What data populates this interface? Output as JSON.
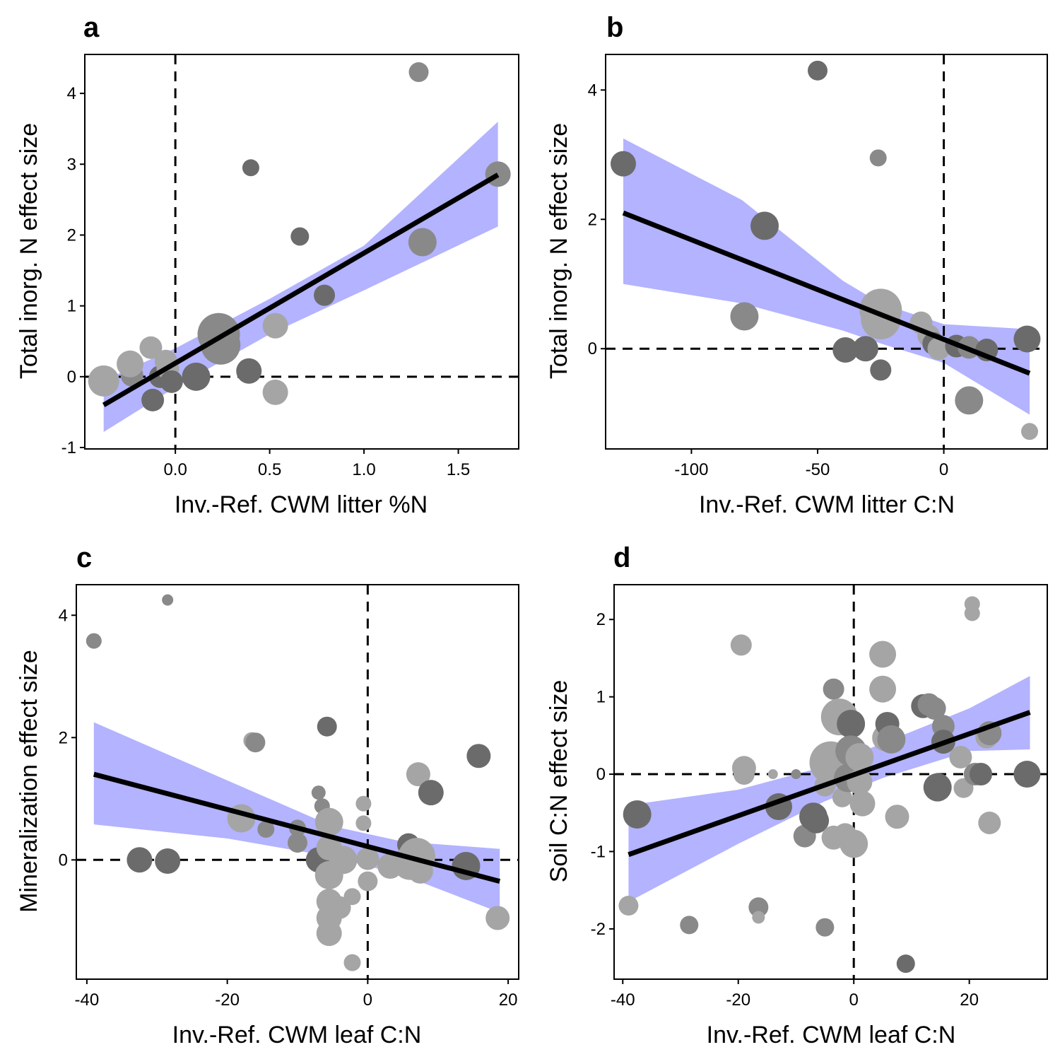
{
  "figure": {
    "panels": [
      "a",
      "b",
      "c",
      "d"
    ]
  },
  "colors": {
    "ci_band": "#b3b3ff",
    "fit_line": "#000000",
    "point_dark": "#6b6b6b",
    "point_mid": "#898989",
    "point_light": "#a5a5a5"
  },
  "chart_data": [
    {
      "panel": "a",
      "type": "scatter",
      "xlabel": "Inv.-Ref. CWM litter %N",
      "ylabel": "Total inorg. N effect size",
      "xlim": [
        -0.48,
        1.82
      ],
      "ylim": [
        -1.02,
        4.55
      ],
      "xticks": [
        0.0,
        0.5,
        1.0,
        1.5
      ],
      "xtick_labels": [
        "0.0",
        "0.5",
        "1.0",
        "1.5"
      ],
      "yticks": [
        -1,
        0,
        1,
        2,
        3,
        4
      ],
      "ytick_labels": [
        "-1",
        "0",
        "1",
        "2",
        "3",
        "4"
      ],
      "reference_lines": {
        "x": 0,
        "y": 0
      },
      "fit": {
        "x": [
          -0.38,
          1.71
        ],
        "y": [
          -0.4,
          2.85
        ]
      },
      "ci_band": {
        "x": [
          -0.38,
          0.0,
          0.5,
          1.0,
          1.71
        ],
        "lower": [
          -0.78,
          -0.15,
          0.6,
          1.22,
          2.12
        ],
        "upper": [
          -0.05,
          0.4,
          1.1,
          1.85,
          3.6
        ]
      },
      "points": [
        {
          "x": -0.38,
          "y": -0.06,
          "size": 22,
          "shade": "light"
        },
        {
          "x": -0.23,
          "y": 0.02,
          "size": 16,
          "shade": "mid"
        },
        {
          "x": -0.24,
          "y": 0.18,
          "size": 19,
          "shade": "light"
        },
        {
          "x": -0.13,
          "y": 0.41,
          "size": 16,
          "shade": "light"
        },
        {
          "x": -0.12,
          "y": -0.33,
          "size": 16,
          "shade": "dark"
        },
        {
          "x": -0.08,
          "y": 0.0,
          "size": 16,
          "shade": "dark"
        },
        {
          "x": -0.05,
          "y": 0.22,
          "size": 16,
          "shade": "light"
        },
        {
          "x": -0.04,
          "y": 0.12,
          "size": 16,
          "shade": "light"
        },
        {
          "x": -0.02,
          "y": -0.07,
          "size": 16,
          "shade": "dark"
        },
        {
          "x": 0.11,
          "y": 0.0,
          "size": 20,
          "shade": "dark"
        },
        {
          "x": 0.23,
          "y": 0.6,
          "size": 30,
          "shade": "mid"
        },
        {
          "x": 0.24,
          "y": 0.45,
          "size": 28,
          "shade": "mid"
        },
        {
          "x": 0.39,
          "y": 0.08,
          "size": 18,
          "shade": "dark"
        },
        {
          "x": 0.4,
          "y": 2.95,
          "size": 12,
          "shade": "dark"
        },
        {
          "x": 0.53,
          "y": 0.72,
          "size": 18,
          "shade": "light"
        },
        {
          "x": 0.53,
          "y": -0.22,
          "size": 18,
          "shade": "light"
        },
        {
          "x": 0.66,
          "y": 1.98,
          "size": 13,
          "shade": "dark"
        },
        {
          "x": 0.79,
          "y": 1.15,
          "size": 15,
          "shade": "dark"
        },
        {
          "x": 1.29,
          "y": 4.3,
          "size": 14,
          "shade": "mid"
        },
        {
          "x": 1.31,
          "y": 1.9,
          "size": 20,
          "shade": "mid"
        },
        {
          "x": 1.71,
          "y": 2.86,
          "size": 18,
          "shade": "mid"
        }
      ]
    },
    {
      "panel": "b",
      "type": "scatter",
      "xlabel": "Inv.-Ref. CWM litter C:N",
      "ylabel": "Total inorg. N effect size",
      "xlim": [
        -134,
        41
      ],
      "ylim": [
        -1.55,
        4.55
      ],
      "xticks": [
        -100,
        -50,
        0
      ],
      "xtick_labels": [
        "-100",
        "-50",
        "0"
      ],
      "yticks": [
        0,
        2,
        4
      ],
      "ytick_labels": [
        "0",
        "2",
        "4"
      ],
      "reference_lines": {
        "x": 0,
        "y": 0
      },
      "fit": {
        "x": [
          -127,
          34
        ],
        "y": [
          2.1,
          -0.38
        ]
      },
      "ci_band": {
        "x": [
          -127,
          -80,
          -40,
          -25,
          0,
          34
        ],
        "lower": [
          1.0,
          0.7,
          0.28,
          0.08,
          -0.22,
          -1.02
        ],
        "upper": [
          3.25,
          2.3,
          1.05,
          0.7,
          0.38,
          0.3
        ]
      },
      "points": [
        {
          "x": -127,
          "y": 2.86,
          "size": 18,
          "shade": "dark"
        },
        {
          "x": -71,
          "y": 1.9,
          "size": 20,
          "shade": "dark"
        },
        {
          "x": -50,
          "y": 4.3,
          "size": 14,
          "shade": "dark"
        },
        {
          "x": -79,
          "y": 0.5,
          "size": 20,
          "shade": "mid"
        },
        {
          "x": -39,
          "y": -0.02,
          "size": 18,
          "shade": "dark"
        },
        {
          "x": -31,
          "y": 0.0,
          "size": 18,
          "shade": "dark"
        },
        {
          "x": -26,
          "y": 2.95,
          "size": 12,
          "shade": "mid"
        },
        {
          "x": -25,
          "y": 0.6,
          "size": 30,
          "shade": "light"
        },
        {
          "x": -25,
          "y": 0.45,
          "size": 28,
          "shade": "light"
        },
        {
          "x": -25,
          "y": -0.33,
          "size": 15,
          "shade": "dark"
        },
        {
          "x": -9,
          "y": 0.4,
          "size": 16,
          "shade": "light"
        },
        {
          "x": -6,
          "y": 0.2,
          "size": 16,
          "shade": "light"
        },
        {
          "x": -4,
          "y": 0.08,
          "size": 16,
          "shade": "dark"
        },
        {
          "x": -2,
          "y": 0.0,
          "size": 16,
          "shade": "light"
        },
        {
          "x": 5,
          "y": 0.04,
          "size": 16,
          "shade": "dark"
        },
        {
          "x": 10,
          "y": 0.02,
          "size": 16,
          "shade": "mid"
        },
        {
          "x": 10,
          "y": -0.8,
          "size": 20,
          "shade": "mid"
        },
        {
          "x": 17,
          "y": -0.02,
          "size": 16,
          "shade": "dark"
        },
        {
          "x": 33,
          "y": 0.15,
          "size": 19,
          "shade": "dark"
        },
        {
          "x": 34,
          "y": -1.28,
          "size": 12,
          "shade": "light"
        }
      ]
    },
    {
      "panel": "c",
      "type": "scatter",
      "xlabel": "Inv.-Ref. CWM leaf C:N",
      "ylabel": "Mineralization effect size",
      "xlim": [
        -41.5,
        21.5
      ],
      "ylim": [
        -1.95,
        4.5
      ],
      "xticks": [
        -40,
        -20,
        0,
        20
      ],
      "xtick_labels": [
        "-40",
        "-20",
        "0",
        "20"
      ],
      "yticks": [
        0,
        2,
        4
      ],
      "ytick_labels": [
        "0",
        "2",
        "4"
      ],
      "reference_lines": {
        "x": 0,
        "y": 0
      },
      "fit": {
        "x": [
          -39,
          18.8
        ],
        "y": [
          1.4,
          -0.35
        ]
      },
      "ci_band": {
        "x": [
          -39,
          -20,
          -5,
          5,
          18.8
        ],
        "lower": [
          0.58,
          0.35,
          0.05,
          -0.25,
          -0.86
        ],
        "upper": [
          2.25,
          1.3,
          0.55,
          0.3,
          0.18
        ]
      },
      "points": [
        {
          "x": -39,
          "y": 3.58,
          "size": 11,
          "shade": "mid"
        },
        {
          "x": -28.5,
          "y": 4.25,
          "size": 8,
          "shade": "mid"
        },
        {
          "x": -32.5,
          "y": 0.0,
          "size": 18,
          "shade": "dark"
        },
        {
          "x": -28.5,
          "y": -0.02,
          "size": 18,
          "shade": "dark"
        },
        {
          "x": -18,
          "y": 0.68,
          "size": 20,
          "shade": "light"
        },
        {
          "x": -16.5,
          "y": 1.95,
          "size": 12,
          "shade": "light"
        },
        {
          "x": -16,
          "y": 1.92,
          "size": 14,
          "shade": "mid"
        },
        {
          "x": -14.5,
          "y": 0.5,
          "size": 12,
          "shade": "mid"
        },
        {
          "x": -10,
          "y": 0.52,
          "size": 12,
          "shade": "mid"
        },
        {
          "x": -10,
          "y": 0.28,
          "size": 14,
          "shade": "mid"
        },
        {
          "x": -7,
          "y": 1.1,
          "size": 10,
          "shade": "mid"
        },
        {
          "x": -6.5,
          "y": 0.88,
          "size": 11,
          "shade": "mid"
        },
        {
          "x": -7,
          "y": 0.0,
          "size": 18,
          "shade": "dark"
        },
        {
          "x": -5.8,
          "y": 2.18,
          "size": 14,
          "shade": "dark"
        },
        {
          "x": -5.5,
          "y": 0.62,
          "size": 20,
          "shade": "light"
        },
        {
          "x": -5.5,
          "y": 0.2,
          "size": 18,
          "shade": "light"
        },
        {
          "x": -5.5,
          "y": -0.25,
          "size": 20,
          "shade": "light"
        },
        {
          "x": -5.5,
          "y": -0.68,
          "size": 18,
          "shade": "light"
        },
        {
          "x": -5.5,
          "y": -0.95,
          "size": 18,
          "shade": "light"
        },
        {
          "x": -5.5,
          "y": -1.2,
          "size": 18,
          "shade": "light"
        },
        {
          "x": -4,
          "y": -0.78,
          "size": 16,
          "shade": "light"
        },
        {
          "x": -3.5,
          "y": 0.0,
          "size": 20,
          "shade": "light"
        },
        {
          "x": -2.2,
          "y": -0.6,
          "size": 12,
          "shade": "light"
        },
        {
          "x": -2.2,
          "y": -1.68,
          "size": 12,
          "shade": "light"
        },
        {
          "x": -0.6,
          "y": 0.92,
          "size": 11,
          "shade": "light"
        },
        {
          "x": -0.6,
          "y": 0.6,
          "size": 11,
          "shade": "light"
        },
        {
          "x": 0,
          "y": 0.02,
          "size": 16,
          "shade": "light"
        },
        {
          "x": 0,
          "y": -0.35,
          "size": 14,
          "shade": "light"
        },
        {
          "x": 3.2,
          "y": -0.1,
          "size": 18,
          "shade": "light"
        },
        {
          "x": 5.8,
          "y": 0.25,
          "size": 16,
          "shade": "dark"
        },
        {
          "x": 6,
          "y": -0.05,
          "size": 24,
          "shade": "light"
        },
        {
          "x": 7,
          "y": 0.06,
          "size": 26,
          "shade": "light"
        },
        {
          "x": 7.5,
          "y": -0.18,
          "size": 18,
          "shade": "light"
        },
        {
          "x": 7.2,
          "y": 1.4,
          "size": 17,
          "shade": "light"
        },
        {
          "x": 9,
          "y": 1.1,
          "size": 18,
          "shade": "dark"
        },
        {
          "x": 14,
          "y": -0.1,
          "size": 20,
          "shade": "dark"
        },
        {
          "x": 15.8,
          "y": 1.7,
          "size": 17,
          "shade": "dark"
        },
        {
          "x": 18.5,
          "y": -0.95,
          "size": 17,
          "shade": "light"
        }
      ]
    },
    {
      "panel": "d",
      "type": "scatter",
      "xlabel": "Inv.-Ref. CWM leaf C:N",
      "ylabel": "Soil C:N effect size",
      "xlim": [
        -41.5,
        33.5
      ],
      "ylim": [
        -2.65,
        2.45
      ],
      "xticks": [
        -40,
        -20,
        0,
        20
      ],
      "xtick_labels": [
        "-40",
        "-20",
        "0",
        "20"
      ],
      "yticks": [
        -2,
        -1,
        0,
        1,
        2
      ],
      "ytick_labels": [
        "-2",
        "-1",
        "0",
        "1",
        "2"
      ],
      "reference_lines": {
        "x": 0,
        "y": 0
      },
      "fit": {
        "x": [
          -39,
          30.5
        ],
        "y": [
          -1.04,
          0.8
        ]
      },
      "ci_band": {
        "x": [
          -39,
          -20,
          -5,
          5,
          20,
          30.5
        ],
        "lower": [
          -1.65,
          -0.9,
          -0.35,
          -0.05,
          0.3,
          0.32
        ],
        "upper": [
          -0.4,
          -0.2,
          0.1,
          0.4,
          0.85,
          1.27
        ]
      },
      "points": [
        {
          "x": -39,
          "y": -1.7,
          "size": 14,
          "shade": "light"
        },
        {
          "x": -37.5,
          "y": -0.52,
          "size": 20,
          "shade": "dark"
        },
        {
          "x": -28.5,
          "y": -1.95,
          "size": 13,
          "shade": "mid"
        },
        {
          "x": -19.5,
          "y": 1.67,
          "size": 15,
          "shade": "light"
        },
        {
          "x": -19,
          "y": 0.08,
          "size": 17,
          "shade": "light"
        },
        {
          "x": -19,
          "y": 0.0,
          "size": 15,
          "shade": "light"
        },
        {
          "x": -16.5,
          "y": -1.72,
          "size": 14,
          "shade": "mid"
        },
        {
          "x": -16.5,
          "y": -1.85,
          "size": 9,
          "shade": "light"
        },
        {
          "x": -14,
          "y": 0.0,
          "size": 7,
          "shade": "light"
        },
        {
          "x": -13,
          "y": -0.42,
          "size": 19,
          "shade": "dark"
        },
        {
          "x": -10,
          "y": 0.0,
          "size": 7,
          "shade": "mid"
        },
        {
          "x": -8.5,
          "y": -0.8,
          "size": 16,
          "shade": "mid"
        },
        {
          "x": -7,
          "y": -0.55,
          "size": 20,
          "shade": "dark"
        },
        {
          "x": -6.5,
          "y": -0.6,
          "size": 18,
          "shade": "dark"
        },
        {
          "x": -5.5,
          "y": 0.0,
          "size": 8,
          "shade": "light"
        },
        {
          "x": -5,
          "y": -1.98,
          "size": 13,
          "shade": "mid"
        },
        {
          "x": -5,
          "y": -0.15,
          "size": 15,
          "shade": "light"
        },
        {
          "x": -4,
          "y": 0.15,
          "size": 30,
          "shade": "light"
        },
        {
          "x": -3.5,
          "y": 1.1,
          "size": 15,
          "shade": "mid"
        },
        {
          "x": -3.5,
          "y": -0.82,
          "size": 17,
          "shade": "light"
        },
        {
          "x": -2.5,
          "y": 0.74,
          "size": 26,
          "shade": "light"
        },
        {
          "x": -2,
          "y": -0.3,
          "size": 14,
          "shade": "light"
        },
        {
          "x": -1.5,
          "y": -0.78,
          "size": 16,
          "shade": "light"
        },
        {
          "x": -1,
          "y": -0.05,
          "size": 20,
          "shade": "mid"
        },
        {
          "x": -0.5,
          "y": 0.65,
          "size": 20,
          "shade": "dark"
        },
        {
          "x": -0.5,
          "y": 0.3,
          "size": 22,
          "shade": "mid"
        },
        {
          "x": 0,
          "y": 0.0,
          "size": 10,
          "shade": "mid"
        },
        {
          "x": 0,
          "y": -0.9,
          "size": 20,
          "shade": "light"
        },
        {
          "x": 1,
          "y": 0.22,
          "size": 20,
          "shade": "light"
        },
        {
          "x": 1,
          "y": -0.1,
          "size": 18,
          "shade": "light"
        },
        {
          "x": 1.5,
          "y": -0.38,
          "size": 18,
          "shade": "light"
        },
        {
          "x": 5,
          "y": 1.55,
          "size": 19,
          "shade": "light"
        },
        {
          "x": 5,
          "y": 1.1,
          "size": 19,
          "shade": "light"
        },
        {
          "x": 5.5,
          "y": 0.47,
          "size": 19,
          "shade": "light"
        },
        {
          "x": 5.8,
          "y": 0.65,
          "size": 17,
          "shade": "dark"
        },
        {
          "x": 6.5,
          "y": 0.45,
          "size": 20,
          "shade": "mid"
        },
        {
          "x": 7.5,
          "y": -0.55,
          "size": 17,
          "shade": "light"
        },
        {
          "x": 9,
          "y": -2.45,
          "size": 13,
          "shade": "dark"
        },
        {
          "x": 12,
          "y": 0.88,
          "size": 17,
          "shade": "dark"
        },
        {
          "x": 13,
          "y": 0.9,
          "size": 16,
          "shade": "mid"
        },
        {
          "x": 14,
          "y": 0.85,
          "size": 16,
          "shade": "mid"
        },
        {
          "x": 14.5,
          "y": -0.17,
          "size": 20,
          "shade": "dark"
        },
        {
          "x": 15.5,
          "y": 0.62,
          "size": 16,
          "shade": "mid"
        },
        {
          "x": 15.5,
          "y": 0.42,
          "size": 17,
          "shade": "dark"
        },
        {
          "x": 18.5,
          "y": 0.22,
          "size": 16,
          "shade": "light"
        },
        {
          "x": 19,
          "y": -0.18,
          "size": 14,
          "shade": "light"
        },
        {
          "x": 20.5,
          "y": 2.2,
          "size": 11,
          "shade": "light"
        },
        {
          "x": 20.5,
          "y": 2.08,
          "size": 11,
          "shade": "light"
        },
        {
          "x": 21,
          "y": 0.0,
          "size": 16,
          "shade": "mid"
        },
        {
          "x": 22,
          "y": 0.0,
          "size": 16,
          "shade": "dark"
        },
        {
          "x": 23,
          "y": 0.48,
          "size": 16,
          "shade": "light"
        },
        {
          "x": 23.5,
          "y": 0.53,
          "size": 17,
          "shade": "mid"
        },
        {
          "x": 23.5,
          "y": -0.63,
          "size": 16,
          "shade": "light"
        },
        {
          "x": 30,
          "y": 0.0,
          "size": 19,
          "shade": "dark"
        }
      ]
    }
  ]
}
